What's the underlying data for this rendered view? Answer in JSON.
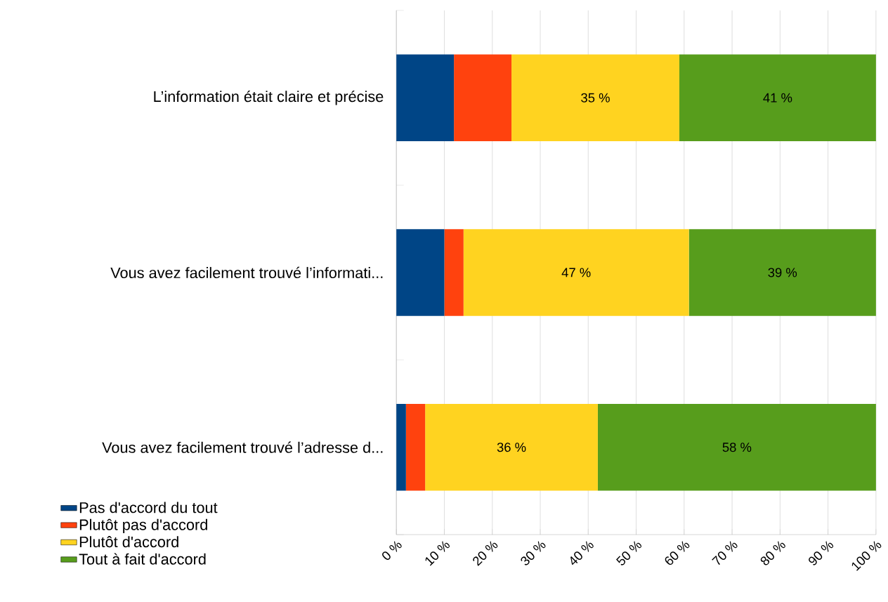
{
  "chart_data": {
    "type": "bar",
    "orientation": "horizontal",
    "stacked": true,
    "categories": [
      "L’information était claire et précise",
      "Vous avez facilement trouvé l’informati...",
      "Vous avez facilement trouvé l’adresse d..."
    ],
    "series": [
      {
        "name": "Pas d'accord du tout",
        "color": "#004586",
        "values": [
          12,
          10,
          2
        ]
      },
      {
        "name": "Plutôt pas d'accord",
        "color": "#ff420e",
        "values": [
          12,
          4,
          4
        ]
      },
      {
        "name": "Plutôt d'accord",
        "color": "#ffd320",
        "values": [
          35,
          47,
          36
        ],
        "value_labels": [
          "35 %",
          "47 %",
          "36 %"
        ]
      },
      {
        "name": "Tout à fait d'accord",
        "color": "#579d1c",
        "values": [
          41,
          39,
          58
        ],
        "value_labels": [
          "41 %",
          "39 %",
          "58 %"
        ]
      }
    ],
    "xlim": [
      0,
      100
    ],
    "xticks": [
      {
        "value": 0,
        "label": "0 %"
      },
      {
        "value": 10,
        "label": "10 %"
      },
      {
        "value": 20,
        "label": "20 %"
      },
      {
        "value": 30,
        "label": "30 %"
      },
      {
        "value": 40,
        "label": "40 %"
      },
      {
        "value": 50,
        "label": "50 %"
      },
      {
        "value": 60,
        "label": "60 %"
      },
      {
        "value": 70,
        "label": "70 %"
      },
      {
        "value": 80,
        "label": "80 %"
      },
      {
        "value": 90,
        "label": "90 %"
      },
      {
        "value": 100,
        "label": "100 %"
      }
    ],
    "grid": "x",
    "legend": "bottom left"
  }
}
